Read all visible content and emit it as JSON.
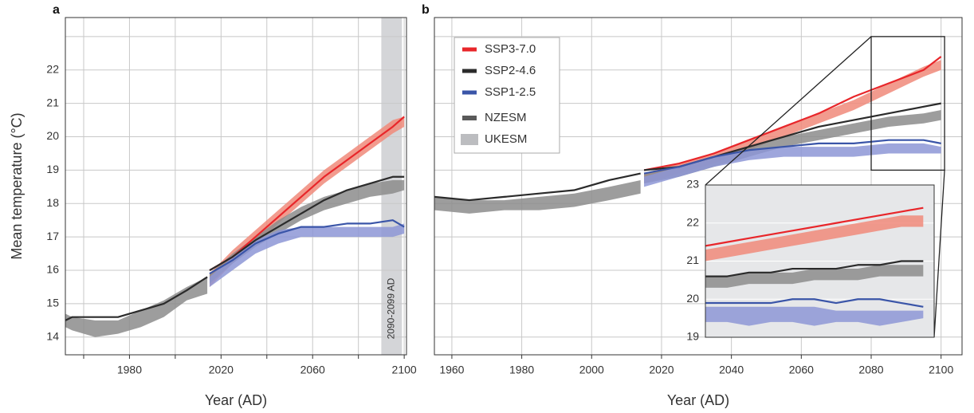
{
  "chart_data": [
    {
      "type": "line",
      "panel_label": "a",
      "ylabel": "Mean temperature (°C)",
      "xlabel": "Year (AD)",
      "xlim": [
        1952,
        2101
      ],
      "xticks": [
        1980,
        2020,
        2060,
        2100
      ],
      "xminorticks": [
        1960,
        2000,
        2040,
        2080
      ],
      "ylim": [
        13.47,
        23.57
      ],
      "yticks": [
        14,
        15,
        16,
        17,
        18,
        19,
        20,
        21,
        22
      ],
      "yminorticks": [
        23
      ],
      "show_ytick_labels": true,
      "grid": true,
      "shade": {
        "x": [
          2090,
          2099
        ],
        "label": "2090-2099 AD",
        "color": "#d4d5d8"
      },
      "series": [
        {
          "style": "band",
          "color": "#8c8c8c",
          "x": [
            1952,
            1955,
            1965,
            1975,
            1985,
            1995,
            2005,
            2014
          ],
          "low": [
            14.3,
            14.2,
            14.0,
            14.1,
            14.3,
            14.6,
            15.1,
            15.3
          ],
          "high": [
            14.7,
            14.6,
            14.5,
            14.5,
            14.8,
            15.1,
            15.5,
            15.8
          ]
        },
        {
          "style": "band",
          "color": "#f08a7a",
          "x": [
            2015,
            2025,
            2035,
            2045,
            2055,
            2065,
            2075,
            2085,
            2095,
            2100
          ],
          "low": [
            15.5,
            16.2,
            16.8,
            17.4,
            18.0,
            18.6,
            19.1,
            19.6,
            20.1,
            20.3
          ],
          "high": [
            15.9,
            16.6,
            17.2,
            17.8,
            18.4,
            19.0,
            19.5,
            20.0,
            20.5,
            20.6
          ]
        },
        {
          "style": "band",
          "color": "#8c8c8c",
          "x": [
            2015,
            2025,
            2035,
            2045,
            2055,
            2065,
            2075,
            2085,
            2095,
            2100
          ],
          "low": [
            15.6,
            16.2,
            16.7,
            17.1,
            17.5,
            17.8,
            18.0,
            18.2,
            18.3,
            18.4
          ],
          "high": [
            15.9,
            16.5,
            17.0,
            17.5,
            17.9,
            18.2,
            18.4,
            18.6,
            18.7,
            18.7
          ]
        },
        {
          "style": "band",
          "color": "#8d96d6",
          "x": [
            2015,
            2025,
            2035,
            2045,
            2055,
            2065,
            2075,
            2085,
            2095,
            2100
          ],
          "low": [
            15.5,
            16.0,
            16.5,
            16.8,
            17.0,
            17.0,
            17.0,
            17.0,
            17.0,
            17.1
          ],
          "high": [
            15.8,
            16.4,
            16.9,
            17.2,
            17.3,
            17.3,
            17.3,
            17.3,
            17.3,
            17.4
          ]
        },
        {
          "style": "line",
          "color": "#2b2b2b",
          "x": [
            1952,
            1955,
            1965,
            1975,
            1985,
            1995,
            2005,
            2014
          ],
          "values": [
            14.5,
            14.6,
            14.6,
            14.6,
            14.8,
            15.0,
            15.4,
            15.8
          ]
        },
        {
          "style": "line",
          "color": "#e8262a",
          "x": [
            2015,
            2025,
            2035,
            2045,
            2055,
            2065,
            2075,
            2085,
            2095,
            2100
          ],
          "values": [
            16.0,
            16.4,
            17.0,
            17.6,
            18.2,
            18.8,
            19.3,
            19.8,
            20.3,
            20.6
          ]
        },
        {
          "style": "line",
          "color": "#2b2b2b",
          "x": [
            2015,
            2025,
            2035,
            2045,
            2055,
            2065,
            2075,
            2085,
            2095,
            2100
          ],
          "values": [
            16.0,
            16.4,
            16.9,
            17.3,
            17.7,
            18.1,
            18.4,
            18.6,
            18.8,
            18.8
          ]
        },
        {
          "style": "line",
          "color": "#3a55a8",
          "x": [
            2015,
            2025,
            2035,
            2045,
            2055,
            2065,
            2075,
            2085,
            2095,
            2100
          ],
          "values": [
            15.9,
            16.3,
            16.8,
            17.1,
            17.3,
            17.3,
            17.4,
            17.4,
            17.5,
            17.3
          ]
        }
      ]
    },
    {
      "type": "line",
      "panel_label": "b",
      "xlabel": "Year (AD)",
      "xlim": [
        1955,
        2106
      ],
      "xticks": [
        1960,
        1980,
        2000,
        2020,
        2040,
        2060,
        2080,
        2100
      ],
      "ylim": [
        13.47,
        23.57
      ],
      "yticks": [
        14,
        15,
        16,
        17,
        18,
        19,
        20,
        21,
        22
      ],
      "yminorticks": [
        23
      ],
      "show_ytick_labels": false,
      "grid": true,
      "legend": [
        {
          "name": "SSP3-7.0",
          "color": "#e8262a"
        },
        {
          "name": "SSP2-4.6",
          "color": "#2b2b2b"
        },
        {
          "name": "SSP1-2.5",
          "color": "#3a55a8"
        },
        {
          "name": "NZESM",
          "color": "#5a5a5a"
        },
        {
          "name": "UKESM",
          "color": "#bcbdc0"
        }
      ],
      "series": [
        {
          "style": "band",
          "color": "#8c8c8c",
          "x": [
            1955,
            1965,
            1975,
            1985,
            1995,
            2005,
            2014
          ],
          "low": [
            17.8,
            17.7,
            17.8,
            17.8,
            17.9,
            18.1,
            18.3
          ],
          "high": [
            18.2,
            18.1,
            18.1,
            18.2,
            18.3,
            18.5,
            18.7
          ]
        },
        {
          "style": "band",
          "color": "#f08a7a",
          "x": [
            2015,
            2025,
            2035,
            2045,
            2055,
            2065,
            2075,
            2085,
            2095,
            2100
          ],
          "low": [
            18.6,
            18.9,
            19.2,
            19.6,
            20.0,
            20.4,
            20.8,
            21.3,
            21.8,
            22.0
          ],
          "high": [
            18.9,
            19.2,
            19.5,
            19.9,
            20.3,
            20.7,
            21.1,
            21.6,
            22.1,
            22.3
          ]
        },
        {
          "style": "band",
          "color": "#8c8c8c",
          "x": [
            2015,
            2025,
            2035,
            2045,
            2055,
            2065,
            2075,
            2085,
            2095,
            2100
          ],
          "low": [
            18.6,
            18.8,
            19.1,
            19.4,
            19.7,
            19.9,
            20.1,
            20.3,
            20.4,
            20.5
          ],
          "high": [
            18.9,
            19.1,
            19.4,
            19.7,
            20.0,
            20.2,
            20.4,
            20.6,
            20.7,
            20.8
          ]
        },
        {
          "style": "band",
          "color": "#8d96d6",
          "x": [
            2015,
            2025,
            2035,
            2045,
            2055,
            2065,
            2075,
            2085,
            2095,
            2100
          ],
          "low": [
            18.5,
            18.8,
            19.1,
            19.3,
            19.4,
            19.4,
            19.4,
            19.5,
            19.5,
            19.5
          ],
          "high": [
            18.8,
            19.1,
            19.4,
            19.6,
            19.7,
            19.7,
            19.7,
            19.8,
            19.8,
            19.7
          ]
        },
        {
          "style": "line",
          "color": "#2b2b2b",
          "x": [
            1955,
            1965,
            1975,
            1985,
            1995,
            2005,
            2014
          ],
          "values": [
            18.2,
            18.1,
            18.2,
            18.3,
            18.4,
            18.7,
            18.9
          ]
        },
        {
          "style": "line",
          "color": "#e8262a",
          "x": [
            2015,
            2025,
            2035,
            2045,
            2055,
            2065,
            2075,
            2085,
            2095,
            2100
          ],
          "values": [
            19.0,
            19.2,
            19.5,
            19.9,
            20.3,
            20.7,
            21.2,
            21.6,
            22.0,
            22.4
          ]
        },
        {
          "style": "line",
          "color": "#2b2b2b",
          "x": [
            2015,
            2025,
            2035,
            2045,
            2055,
            2065,
            2075,
            2085,
            2095,
            2100
          ],
          "values": [
            19.0,
            19.1,
            19.4,
            19.7,
            20.0,
            20.3,
            20.5,
            20.7,
            20.9,
            21.0
          ]
        },
        {
          "style": "line",
          "color": "#3a55a8",
          "x": [
            2015,
            2025,
            2035,
            2045,
            2055,
            2065,
            2075,
            2085,
            2095,
            2100
          ],
          "values": [
            18.9,
            19.1,
            19.4,
            19.6,
            19.7,
            19.8,
            19.8,
            19.9,
            19.9,
            19.8
          ]
        }
      ]
    },
    {
      "type": "line",
      "xlim": [
        2080,
        2101
      ],
      "ylim": [
        19,
        23
      ],
      "yticks": [
        19,
        20,
        21,
        22,
        23
      ],
      "show_ytick_labels": true,
      "grid": true,
      "series": [
        {
          "style": "band",
          "color": "#f08a7a",
          "x": [
            2080,
            2082,
            2084,
            2086,
            2088,
            2090,
            2092,
            2094,
            2096,
            2098,
            2100
          ],
          "low": [
            21.0,
            21.1,
            21.2,
            21.3,
            21.4,
            21.5,
            21.6,
            21.7,
            21.8,
            21.9,
            21.9
          ],
          "high": [
            21.3,
            21.4,
            21.5,
            21.6,
            21.7,
            21.8,
            21.9,
            22.0,
            22.1,
            22.2,
            22.2
          ]
        },
        {
          "style": "band",
          "color": "#8c8c8c",
          "x": [
            2080,
            2082,
            2084,
            2086,
            2088,
            2090,
            2092,
            2094,
            2096,
            2098,
            2100
          ],
          "low": [
            20.3,
            20.3,
            20.4,
            20.4,
            20.4,
            20.5,
            20.5,
            20.5,
            20.6,
            20.6,
            20.6
          ],
          "high": [
            20.6,
            20.6,
            20.7,
            20.7,
            20.7,
            20.8,
            20.8,
            20.8,
            20.9,
            20.9,
            20.9
          ]
        },
        {
          "style": "band",
          "color": "#8d96d6",
          "x": [
            2080,
            2082,
            2084,
            2086,
            2088,
            2090,
            2092,
            2094,
            2096,
            2098,
            2100
          ],
          "low": [
            19.4,
            19.4,
            19.3,
            19.4,
            19.4,
            19.3,
            19.4,
            19.4,
            19.3,
            19.4,
            19.5
          ],
          "high": [
            19.8,
            19.8,
            19.8,
            19.8,
            19.8,
            19.8,
            19.7,
            19.7,
            19.7,
            19.7,
            19.7
          ]
        },
        {
          "style": "line",
          "color": "#e8262a",
          "x": [
            2080,
            2082,
            2084,
            2086,
            2088,
            2090,
            2092,
            2094,
            2096,
            2098,
            2100
          ],
          "values": [
            21.4,
            21.5,
            21.6,
            21.7,
            21.8,
            21.9,
            22.0,
            22.1,
            22.2,
            22.3,
            22.4
          ]
        },
        {
          "style": "line",
          "color": "#2b2b2b",
          "x": [
            2080,
            2082,
            2084,
            2086,
            2088,
            2090,
            2092,
            2094,
            2096,
            2098,
            2100
          ],
          "values": [
            20.6,
            20.6,
            20.7,
            20.7,
            20.8,
            20.8,
            20.8,
            20.9,
            20.9,
            21.0,
            21.0
          ]
        },
        {
          "style": "line",
          "color": "#3a55a8",
          "x": [
            2080,
            2082,
            2084,
            2086,
            2088,
            2090,
            2092,
            2094,
            2096,
            2098,
            2100
          ],
          "values": [
            19.9,
            19.9,
            19.9,
            19.9,
            20.0,
            20.0,
            19.9,
            20.0,
            20.0,
            19.9,
            19.8
          ]
        }
      ]
    }
  ]
}
